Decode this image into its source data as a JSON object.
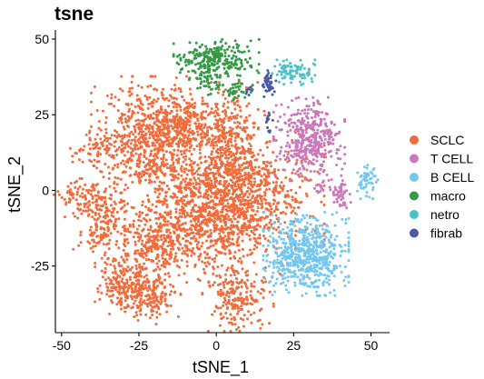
{
  "chart_data": {
    "type": "scatter",
    "title": "tsne",
    "xlabel": "tSNE_1",
    "ylabel": "tSNE_2",
    "xlim": [
      -52,
      56
    ],
    "ylim": [
      -47,
      53
    ],
    "x_ticks": [
      -50,
      -25,
      0,
      25,
      50
    ],
    "y_ticks": [
      -25,
      0,
      25,
      50
    ],
    "x_tick_labels": [
      "-50",
      "-25",
      "0",
      "25",
      "50"
    ],
    "y_tick_labels": [
      "-25",
      "0",
      "25",
      "50"
    ],
    "grid": false,
    "legend_position": "right",
    "legend": [
      "SCLC",
      "T CELL",
      "B CELL",
      "macro",
      "netro",
      "fibrab"
    ],
    "series": [
      {
        "name": "SCLC",
        "color": "#F26B3A",
        "clusters": [
          {
            "center": [
              -22,
              17
            ],
            "spread": [
              8,
              9
            ],
            "count": 600
          },
          {
            "center": [
              -10,
              22
            ],
            "spread": [
              7,
              5
            ],
            "count": 300
          },
          {
            "center": [
              5,
              15
            ],
            "spread": [
              5,
              9
            ],
            "count": 300
          },
          {
            "center": [
              5,
              0
            ],
            "spread": [
              13,
              9
            ],
            "count": 900
          },
          {
            "center": [
              -2,
              -12
            ],
            "spread": [
              12,
              8
            ],
            "count": 700
          },
          {
            "center": [
              -40,
              -3
            ],
            "spread": [
              6,
              3
            ],
            "count": 150
          },
          {
            "center": [
              -37,
              -14
            ],
            "spread": [
              4,
              4
            ],
            "count": 120
          },
          {
            "center": [
              -30,
              -30
            ],
            "spread": [
              4,
              4
            ],
            "count": 150
          },
          {
            "center": [
              -23,
              -35
            ],
            "spread": [
              5,
              4
            ],
            "count": 200
          },
          {
            "center": [
              -20,
              -18
            ],
            "spread": [
              5,
              5
            ],
            "count": 200
          },
          {
            "center": [
              7,
              -35
            ],
            "spread": [
              5,
              5
            ],
            "count": 200
          },
          {
            "center": [
              -38,
              13
            ],
            "spread": [
              4,
              3
            ],
            "count": 80
          }
        ]
      },
      {
        "name": "T CELL",
        "color": "#C979B9",
        "clusters": [
          {
            "center": [
              30,
              17
            ],
            "spread": [
              5,
              6
            ],
            "count": 400
          },
          {
            "center": [
              40,
              -1
            ],
            "spread": [
              1.5,
              2.5
            ],
            "count": 50
          },
          {
            "center": [
              33,
              0
            ],
            "spread": [
              1,
              1.5
            ],
            "count": 15
          }
        ]
      },
      {
        "name": "B CELL",
        "color": "#73C7F0",
        "clusters": [
          {
            "center": [
              29,
              -21
            ],
            "spread": [
              6,
              6
            ],
            "count": 650
          },
          {
            "center": [
              49,
              3
            ],
            "spread": [
              1.5,
              2.5
            ],
            "count": 50
          }
        ]
      },
      {
        "name": "macro",
        "color": "#339A46",
        "clusters": [
          {
            "center": [
              0,
              43
            ],
            "spread": [
              6,
              3
            ],
            "count": 260
          },
          {
            "center": [
              -3,
              36
            ],
            "spread": [
              2,
              2
            ],
            "count": 40
          },
          {
            "center": [
              6,
              33
            ],
            "spread": [
              2.5,
              1.5
            ],
            "count": 40
          }
        ]
      },
      {
        "name": "netro",
        "color": "#4BC1C8",
        "clusters": [
          {
            "center": [
              25,
              39
            ],
            "spread": [
              3,
              1.8
            ],
            "count": 90
          }
        ]
      },
      {
        "name": "fibrab",
        "color": "#4B5AA8",
        "clusters": [
          {
            "center": [
              17,
              35
            ],
            "spread": [
              1,
              2
            ],
            "count": 45
          },
          {
            "center": [
              11,
              33
            ],
            "spread": [
              0.8,
              1
            ],
            "count": 10
          },
          {
            "center": [
              17,
              22
            ],
            "spread": [
              0.6,
              3
            ],
            "count": 14
          }
        ]
      }
    ]
  }
}
